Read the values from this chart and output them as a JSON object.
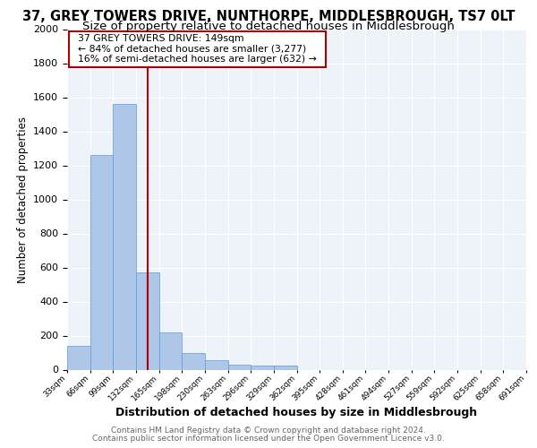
{
  "title": "37, GREY TOWERS DRIVE, NUNTHORPE, MIDDLESBROUGH, TS7 0LT",
  "subtitle": "Size of property relative to detached houses in Middlesbrough",
  "xlabel": "Distribution of detached houses by size in Middlesbrough",
  "ylabel": "Number of detached properties",
  "bar_values": [
    140,
    1260,
    1560,
    570,
    220,
    100,
    55,
    30,
    25,
    25,
    0,
    0,
    0,
    0,
    0,
    0,
    0,
    0,
    0,
    0
  ],
  "bin_labels": [
    "33sqm",
    "66sqm",
    "99sqm",
    "132sqm",
    "165sqm",
    "198sqm",
    "230sqm",
    "263sqm",
    "296sqm",
    "329sqm",
    "362sqm",
    "395sqm",
    "428sqm",
    "461sqm",
    "494sqm",
    "527sqm",
    "559sqm",
    "592sqm",
    "625sqm",
    "658sqm",
    "691sqm"
  ],
  "bar_color": "#aec6e8",
  "bar_edge_color": "#5b9bd5",
  "property_line_x": 149,
  "property_line_color": "#aa0000",
  "annotation_text": "  37 GREY TOWERS DRIVE: 149sqm  \n  ← 84% of detached houses are smaller (3,277)  \n  16% of semi-detached houses are larger (632) →  ",
  "annotation_box_color": "#aa0000",
  "ylim": [
    0,
    2000
  ],
  "yticks": [
    0,
    200,
    400,
    600,
    800,
    1000,
    1200,
    1400,
    1600,
    1800,
    2000
  ],
  "bg_color": "#eef2f9",
  "footer_line1": "Contains HM Land Registry data © Crown copyright and database right 2024.",
  "footer_line2": "Contains public sector information licensed under the Open Government Licence v3.0.",
  "title_fontsize": 10.5,
  "subtitle_fontsize": 9.5,
  "xlabel_fontsize": 9,
  "ylabel_fontsize": 8.5
}
